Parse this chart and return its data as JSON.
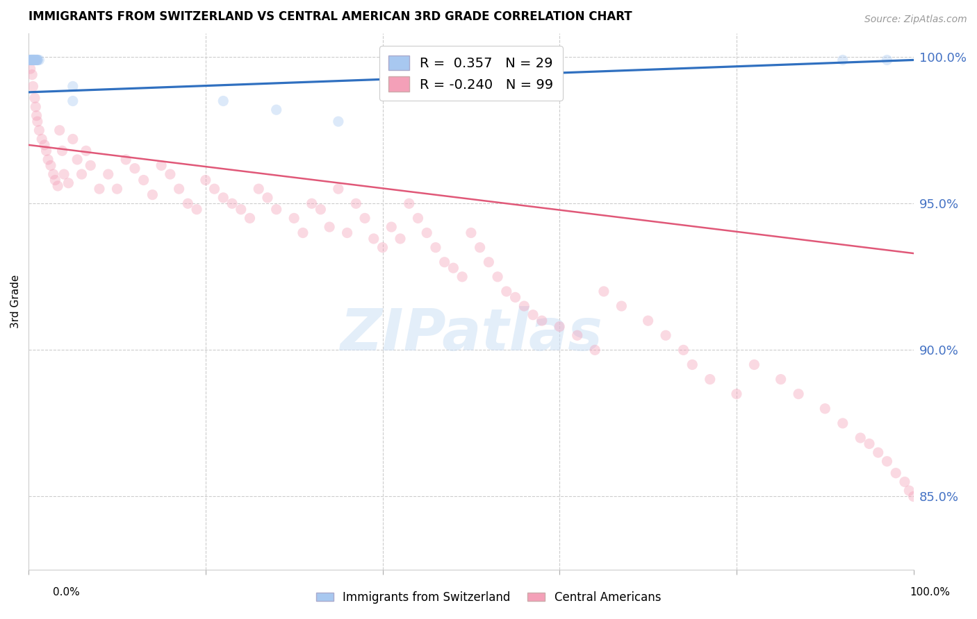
{
  "title": "IMMIGRANTS FROM SWITZERLAND VS CENTRAL AMERICAN 3RD GRADE CORRELATION CHART",
  "source": "Source: ZipAtlas.com",
  "ylabel": "3rd Grade",
  "watermark": "ZIPatlas",
  "blue_R": 0.357,
  "blue_N": 29,
  "pink_R": -0.24,
  "pink_N": 99,
  "blue_color": "#a8c8f0",
  "pink_color": "#f4a0b8",
  "blue_line_color": "#3070c0",
  "pink_line_color": "#e05878",
  "legend_blue_label": "Immigrants from Switzerland",
  "legend_pink_label": "Central Americans",
  "ytick_labels": [
    "100.0%",
    "95.0%",
    "90.0%",
    "85.0%"
  ],
  "ytick_positions": [
    1.0,
    0.95,
    0.9,
    0.85
  ],
  "ytick_color": "#4472c4",
  "grid_color": "#cccccc",
  "blue_points_x": [
    0.001,
    0.002,
    0.002,
    0.003,
    0.003,
    0.004,
    0.004,
    0.005,
    0.005,
    0.006,
    0.006,
    0.007,
    0.007,
    0.008,
    0.008,
    0.009,
    0.01,
    0.01,
    0.01,
    0.012,
    0.05,
    0.05,
    0.22,
    0.28,
    0.35,
    0.5,
    0.52,
    0.92,
    0.97
  ],
  "blue_points_y": [
    0.999,
    0.999,
    0.999,
    0.999,
    0.999,
    0.999,
    0.999,
    0.999,
    0.999,
    0.999,
    0.999,
    0.999,
    0.999,
    0.999,
    0.999,
    0.999,
    0.999,
    0.999,
    0.999,
    0.999,
    0.99,
    0.985,
    0.985,
    0.982,
    0.978,
    0.999,
    0.988,
    0.999,
    0.999
  ],
  "pink_points_x": [
    0.002,
    0.004,
    0.005,
    0.007,
    0.008,
    0.009,
    0.01,
    0.012,
    0.015,
    0.018,
    0.02,
    0.022,
    0.025,
    0.028,
    0.03,
    0.033,
    0.035,
    0.038,
    0.04,
    0.045,
    0.05,
    0.055,
    0.06,
    0.065,
    0.07,
    0.08,
    0.09,
    0.1,
    0.11,
    0.12,
    0.13,
    0.14,
    0.15,
    0.16,
    0.17,
    0.18,
    0.19,
    0.2,
    0.21,
    0.22,
    0.23,
    0.24,
    0.25,
    0.26,
    0.27,
    0.28,
    0.3,
    0.31,
    0.32,
    0.33,
    0.34,
    0.35,
    0.36,
    0.37,
    0.38,
    0.39,
    0.4,
    0.41,
    0.42,
    0.43,
    0.44,
    0.45,
    0.46,
    0.47,
    0.48,
    0.49,
    0.5,
    0.51,
    0.52,
    0.53,
    0.54,
    0.55,
    0.56,
    0.57,
    0.58,
    0.6,
    0.62,
    0.64,
    0.65,
    0.67,
    0.7,
    0.72,
    0.74,
    0.75,
    0.77,
    0.8,
    0.82,
    0.85,
    0.87,
    0.9,
    0.92,
    0.94,
    0.95,
    0.96,
    0.97,
    0.98,
    0.99,
    0.995,
    1.0
  ],
  "pink_points_y": [
    0.996,
    0.994,
    0.99,
    0.986,
    0.983,
    0.98,
    0.978,
    0.975,
    0.972,
    0.97,
    0.968,
    0.965,
    0.963,
    0.96,
    0.958,
    0.956,
    0.975,
    0.968,
    0.96,
    0.957,
    0.972,
    0.965,
    0.96,
    0.968,
    0.963,
    0.955,
    0.96,
    0.955,
    0.965,
    0.962,
    0.958,
    0.953,
    0.963,
    0.96,
    0.955,
    0.95,
    0.948,
    0.958,
    0.955,
    0.952,
    0.95,
    0.948,
    0.945,
    0.955,
    0.952,
    0.948,
    0.945,
    0.94,
    0.95,
    0.948,
    0.942,
    0.955,
    0.94,
    0.95,
    0.945,
    0.938,
    0.935,
    0.942,
    0.938,
    0.95,
    0.945,
    0.94,
    0.935,
    0.93,
    0.928,
    0.925,
    0.94,
    0.935,
    0.93,
    0.925,
    0.92,
    0.918,
    0.915,
    0.912,
    0.91,
    0.908,
    0.905,
    0.9,
    0.92,
    0.915,
    0.91,
    0.905,
    0.9,
    0.895,
    0.89,
    0.885,
    0.895,
    0.89,
    0.885,
    0.88,
    0.875,
    0.87,
    0.868,
    0.865,
    0.862,
    0.858,
    0.855,
    0.852,
    0.85
  ],
  "blue_trend_x": [
    0.0,
    1.0
  ],
  "blue_trend_y": [
    0.988,
    0.999
  ],
  "pink_trend_x": [
    0.0,
    1.0
  ],
  "pink_trend_y": [
    0.97,
    0.933
  ],
  "xmin": 0.0,
  "xmax": 1.0,
  "ymin": 0.825,
  "ymax": 1.008,
  "marker_size": 120,
  "marker_alpha": 0.4,
  "line_width": 1.8
}
